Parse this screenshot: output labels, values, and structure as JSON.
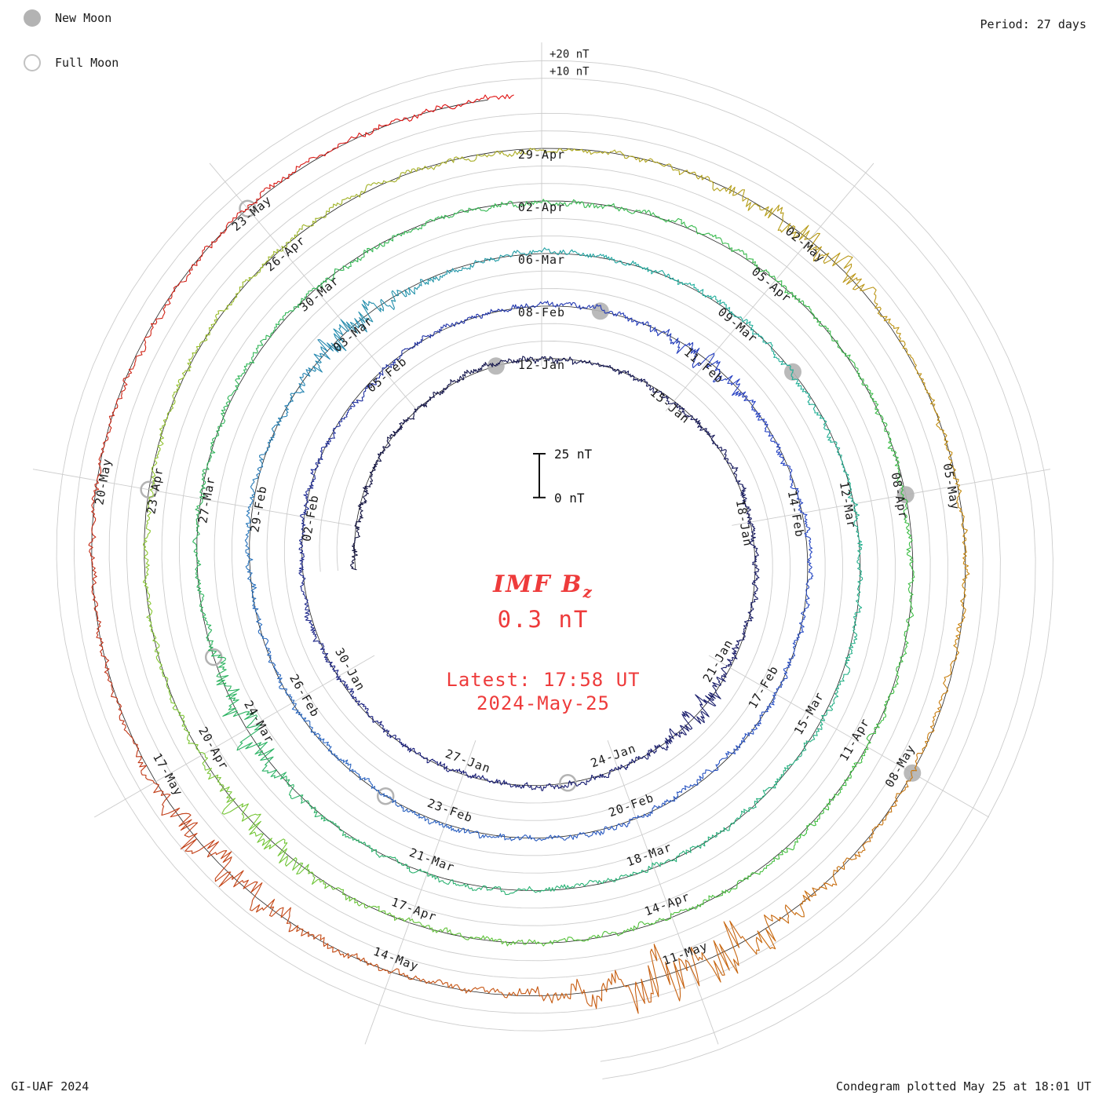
{
  "header": {
    "period_label": "Period: 27 days"
  },
  "legend": {
    "new_moon": "New Moon",
    "full_moon": "Full Moon"
  },
  "center": {
    "title_prefix": "IMF B",
    "title_subscript": "z",
    "value": "0.3 nT",
    "latest_time": "Latest: 17:58 UT",
    "latest_date": "2024-May-25",
    "scale_top": "25 nT",
    "scale_bottom": "0 nT"
  },
  "axis_labels": {
    "outer_plus20": "+20 nT",
    "outer_plus10": "+10 nT"
  },
  "footer": {
    "credit": "GI-UAF 2024",
    "plotted": "Condegram plotted May 25 at 18:01 UT"
  },
  "colors": {
    "accent_red": "#ee3b3b",
    "moon_gray": "#b3b3b3",
    "grid_gray": "#cccccc",
    "baseline_black": "#222222",
    "label_black": "#1a1a1a"
  },
  "chart_data": {
    "type": "line",
    "subtype": "condegram-spiral-polar",
    "title": "Condegram of IMF Bz",
    "series_name": "IMF Bz",
    "units": "nT",
    "period_days": 27,
    "angle_direction": "clockwise-from-top",
    "data_start": "2024-01-05",
    "data_end": "2024-05-25",
    "latest_reading": {
      "value_nT": 0.3,
      "time_ut": "17:58",
      "date": "2024-May-25"
    },
    "plotted_stamp": "May 25 at 18:01 UT",
    "ring_start_dates_at_top": [
      "12-Jan",
      "08-Feb",
      "06-Mar",
      "02-Apr",
      "29-Apr"
    ],
    "first_label_date": "2024-01-12",
    "tick_interval_days": 3,
    "date_labels": [
      "12-Jan",
      "15-Jan",
      "18-Jan",
      "21-Jan",
      "24-Jan",
      "27-Jan",
      "30-Jan",
      "02-Feb",
      "05-Feb",
      "08-Feb",
      "11-Feb",
      "14-Feb",
      "17-Feb",
      "20-Feb",
      "23-Feb",
      "26-Feb",
      "29-Feb",
      "03-Mar",
      "06-Mar",
      "09-Mar",
      "12-Mar",
      "15-Mar",
      "18-Mar",
      "21-Mar",
      "24-Mar",
      "27-Mar",
      "30-Mar",
      "02-Apr",
      "05-Apr",
      "08-Apr",
      "11-Apr",
      "14-Apr",
      "17-Apr",
      "20-Apr",
      "23-Apr",
      "26-Apr",
      "29-Apr",
      "02-May",
      "05-May",
      "08-May",
      "11-May",
      "14-May",
      "17-May",
      "20-May",
      "23-May"
    ],
    "radial_gridlines_nT": [
      0,
      10,
      20
    ],
    "scale_bar": {
      "min_nT": 0,
      "max_nT": 25
    },
    "new_moon_dates": [
      "2024-01-11",
      "2024-02-09",
      "2024-03-10",
      "2024-04-08",
      "2024-05-08"
    ],
    "full_moon_dates": [
      "2024-01-25",
      "2024-02-24",
      "2024-03-25",
      "2024-04-23",
      "2024-05-23"
    ],
    "color_timeline": [
      {
        "date": "2024-01-05",
        "color": "#10103c"
      },
      {
        "date": "2024-01-28",
        "color": "#1a1f7a"
      },
      {
        "date": "2024-02-12",
        "color": "#2742c4"
      },
      {
        "date": "2024-02-27",
        "color": "#2a6abf"
      },
      {
        "date": "2024-03-08",
        "color": "#1fae9e"
      },
      {
        "date": "2024-03-26",
        "color": "#2eb45c"
      },
      {
        "date": "2024-04-12",
        "color": "#3fbf3f"
      },
      {
        "date": "2024-04-22",
        "color": "#8ac832"
      },
      {
        "date": "2024-04-30",
        "color": "#b0a51e"
      },
      {
        "date": "2024-05-06",
        "color": "#c9860e"
      },
      {
        "date": "2024-05-12",
        "color": "#c75c10"
      },
      {
        "date": "2024-05-18",
        "color": "#c03418"
      },
      {
        "date": "2024-05-25",
        "color": "#e01212"
      }
    ],
    "storm_events": [
      {
        "date": "2024-01-22",
        "peak_nT": 8
      },
      {
        "date": "2024-02-11",
        "peak_nT": 7
      },
      {
        "date": "2024-03-03",
        "peak_nT": 12
      },
      {
        "date": "2024-03-24",
        "peak_nT": 13
      },
      {
        "date": "2024-04-19",
        "peak_nT": 11
      },
      {
        "date": "2024-05-02",
        "peak_nT": 12
      },
      {
        "date": "2024-05-11",
        "peak_nT": 26,
        "sigma_days": 1.1
      },
      {
        "date": "2024-05-16",
        "peak_nT": 14,
        "sigma_days": 0.9
      }
    ]
  }
}
